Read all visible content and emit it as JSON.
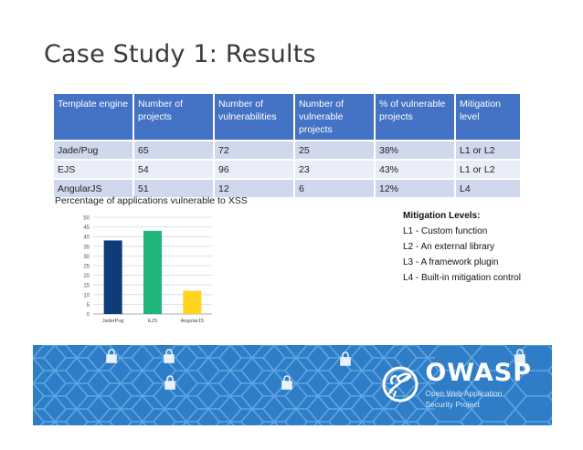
{
  "slide": {
    "title": "Case Study 1: Results"
  },
  "table": {
    "headers": [
      "Template engine",
      "Number of projects",
      "Number of vulnerabilities",
      "Number of vulnerable projects",
      "% of vulnerable projects",
      "Mitigation level"
    ],
    "rows": [
      [
        "Jade/Pug",
        "65",
        "72",
        "25",
        "38%",
        "L1 or L2"
      ],
      [
        "EJS",
        "54",
        "96",
        "23",
        "43%",
        "L1 or L2"
      ],
      [
        "AngularJS",
        "51",
        "12",
        "6",
        "12%",
        "L4"
      ]
    ]
  },
  "chart_caption": "Percentage of applications vulnerable to XSS",
  "chart_data": {
    "type": "bar",
    "title": "",
    "xlabel": "",
    "ylabel": "",
    "categories": [
      "JaderPug",
      "EJS",
      "AngularJS"
    ],
    "values": [
      38,
      43,
      12
    ],
    "colors": [
      "#0d3c78",
      "#1fb57a",
      "#ffd320"
    ],
    "ylim": [
      0,
      50
    ],
    "yticks": [
      "0",
      "5",
      "10",
      "15",
      "20",
      "25",
      "30",
      "35",
      "40",
      "45",
      "50"
    ],
    "grid": true
  },
  "mitigation_legend": {
    "heading": "Mitigation Levels:",
    "items": [
      "L1 - Custom function",
      "L2 - An external library",
      "L3 - A framework plugin",
      "L4 - Built-in mitigation control"
    ]
  },
  "banner": {
    "logo_word": "OWASP",
    "logo_sub_1": "Open Web Application",
    "logo_sub_2": "Security Project",
    "colors": {
      "background": "#2e7dc6",
      "hex_stroke": "#5fa6e3"
    },
    "icons": [
      "lock-icon",
      "wasp-icon"
    ]
  }
}
